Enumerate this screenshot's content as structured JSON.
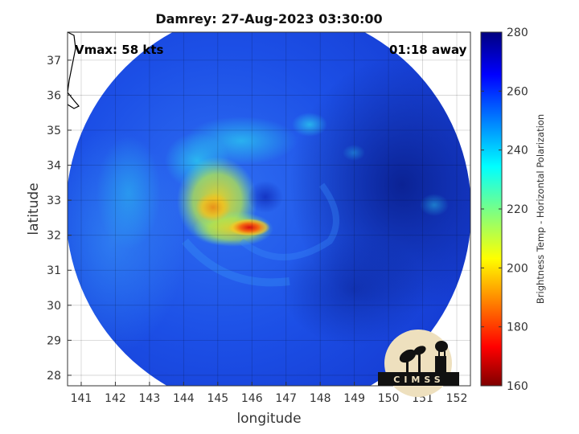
{
  "title": "Damrey: 27-Aug-2023 03:30:00",
  "xlabel": "longitude",
  "ylabel": "latitude",
  "vmax_text": "Vmax: 58 kts",
  "away_text": "01:18 away",
  "colorbar": {
    "label": "Brightness Temp - Horizontal Polarization",
    "min": 160,
    "max": 280,
    "ticks": [
      "280",
      "260",
      "240",
      "220",
      "200",
      "180",
      "160"
    ]
  },
  "axes": {
    "x_ticks": [
      "141",
      "142",
      "143",
      "144",
      "145",
      "146",
      "147",
      "148",
      "149",
      "150",
      "151",
      "152"
    ],
    "y_ticks": [
      "37",
      "36",
      "35",
      "34",
      "33",
      "32",
      "31",
      "30",
      "29",
      "28"
    ],
    "xlim": [
      140.6,
      152.4
    ],
    "ylim": [
      27.7,
      37.8
    ],
    "grid": true
  },
  "logo_text": "CIMSS"
}
